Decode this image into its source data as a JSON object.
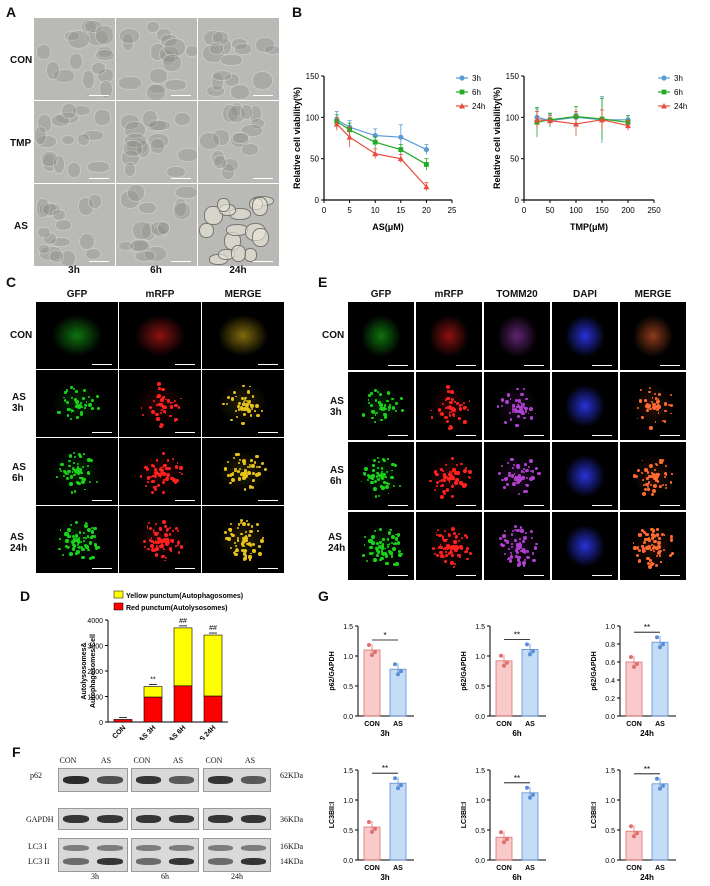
{
  "panels": {
    "A": "A",
    "B": "B",
    "C": "C",
    "D": "D",
    "E": "E",
    "F": "F",
    "G": "G"
  },
  "panel_a": {
    "rows": [
      "CON",
      "TMP",
      "AS"
    ],
    "cols": [
      "3h",
      "6h",
      "24h"
    ]
  },
  "panel_c": {
    "cols": [
      "GFP",
      "mRFP",
      "MERGE"
    ],
    "rows": [
      "CON",
      "AS\n3h",
      "AS\n6h",
      "AS\n24h"
    ]
  },
  "panel_e": {
    "cols": [
      "GFP",
      "mRFP",
      "TOMM20",
      "DAPI",
      "MERGE"
    ],
    "rows": [
      "CON",
      "AS\n3h",
      "AS\n6h",
      "AS\n24h"
    ]
  },
  "panel_f": {
    "lanes": [
      "CON",
      "AS",
      "CON",
      "AS",
      "CON",
      "AS"
    ],
    "left_labels": [
      "p62",
      "GAPDH",
      "LC3 I",
      "LC3 II"
    ],
    "right_labels": [
      "62KDa",
      "36KDa",
      "16KDa",
      "14KDa"
    ],
    "times": [
      "3h",
      "6h",
      "24h"
    ]
  },
  "colors": {
    "s3h": "#5b9bd5",
    "s6h": "#22aa22",
    "s24h": "#e84c3d",
    "yellow": "#ffff00",
    "red": "#ff0000",
    "pink": "#f4a7a7",
    "blue": "#9fc5f0"
  },
  "chart_data": [
    {
      "type": "line",
      "id": "B-left",
      "xlabel": "AS(μM)",
      "ylabel": "Relative cell viability(%)",
      "xlim": [
        0,
        25
      ],
      "ylim": [
        0,
        150
      ],
      "xticks": [
        0,
        5,
        10,
        15,
        20,
        25
      ],
      "yticks": [
        0,
        50,
        100,
        150
      ],
      "x": [
        2.5,
        5,
        10,
        15,
        20
      ],
      "series": [
        {
          "name": "3h",
          "values": [
            97,
            88,
            78,
            76,
            61
          ],
          "err": [
            10,
            8,
            8,
            15,
            6
          ]
        },
        {
          "name": "6h",
          "values": [
            95,
            85,
            70,
            61,
            43
          ],
          "err": [
            8,
            8,
            7,
            6,
            7
          ]
        },
        {
          "name": "24h",
          "values": [
            92,
            76,
            56,
            50,
            16
          ],
          "err": [
            8,
            12,
            6,
            5,
            5
          ]
        }
      ],
      "legend": "right"
    },
    {
      "type": "line",
      "id": "B-right",
      "xlabel": "TMP(μM)",
      "ylabel": "Relative cell viability(%)",
      "xlim": [
        0,
        250
      ],
      "ylim": [
        0,
        150
      ],
      "xticks": [
        0,
        50,
        100,
        150,
        200,
        250
      ],
      "yticks": [
        0,
        50,
        100,
        150
      ],
      "x": [
        25,
        50,
        100,
        150,
        200
      ],
      "series": [
        {
          "name": "3h",
          "values": [
            100,
            96,
            100,
            97,
            97
          ],
          "err": [
            10,
            8,
            5,
            28,
            5
          ]
        },
        {
          "name": "6h",
          "values": [
            94,
            97,
            101,
            98,
            94
          ],
          "err": [
            18,
            8,
            12,
            25,
            8
          ]
        },
        {
          "name": "24h",
          "values": [
            97,
            96,
            92,
            97,
            90
          ],
          "err": [
            10,
            6,
            15,
            12,
            6
          ]
        }
      ],
      "legend": "right"
    },
    {
      "type": "bar",
      "id": "D",
      "stacked": true,
      "ylabel": "Autolysosomes&\nAutophagosomes/Cell",
      "categories": [
        "CON",
        "AS 3H",
        "AS 6H",
        "AS 24H"
      ],
      "ylim": [
        0,
        4000
      ],
      "yticks": [
        0,
        1000,
        2000,
        3000,
        4000
      ],
      "series": [
        {
          "name": "Red punctum(Autolysosomes)",
          "values": [
            100,
            980,
            1420,
            1020
          ]
        },
        {
          "name": "Yellow punctum(Autophagosomes)",
          "values": [
            0,
            410,
            2270,
            2390
          ]
        }
      ],
      "annotations": [
        "",
        "**",
        "##",
        "##"
      ]
    },
    {
      "type": "bar",
      "id": "G-1",
      "ylabel": "p62/GAPDH",
      "categories": [
        "CON",
        "AS"
      ],
      "values": [
        1.1,
        0.78
      ],
      "ylim": [
        0,
        1.5
      ],
      "yticks": [
        "0.0",
        "0.5",
        "1.0",
        "1.5"
      ],
      "sig": "*",
      "time": "3h"
    },
    {
      "type": "bar",
      "id": "G-2",
      "ylabel": "p62/GAPDH",
      "categories": [
        "CON",
        "AS"
      ],
      "values": [
        0.92,
        1.11
      ],
      "ylim": [
        0,
        1.5
      ],
      "yticks": [
        "0.0",
        "0.5",
        "1.0",
        "1.5"
      ],
      "sig": "**",
      "time": "6h"
    },
    {
      "type": "bar",
      "id": "G-3",
      "ylabel": "p62/GAPDH",
      "categories": [
        "CON",
        "AS"
      ],
      "values": [
        0.6,
        0.82
      ],
      "ylim": [
        0,
        1.0
      ],
      "yticks": [
        "0.0",
        "0.2",
        "0.4",
        "0.6",
        "0.8",
        "1.0"
      ],
      "sig": "**",
      "time": "24h"
    },
    {
      "type": "bar",
      "id": "G-4",
      "ylabel": "LC3BII:I",
      "categories": [
        "CON",
        "AS"
      ],
      "values": [
        0.55,
        1.28
      ],
      "ylim": [
        0,
        1.5
      ],
      "yticks": [
        "0.0",
        "0.5",
        "1.0",
        "1.5"
      ],
      "sig": "**",
      "time": "3h"
    },
    {
      "type": "bar",
      "id": "G-5",
      "ylabel": "LC3BII:I",
      "categories": [
        "CON",
        "AS"
      ],
      "values": [
        0.38,
        1.12
      ],
      "ylim": [
        0,
        1.5
      ],
      "yticks": [
        "0.0",
        "0.5",
        "1.0",
        "1.5"
      ],
      "sig": "**",
      "time": "6h"
    },
    {
      "type": "bar",
      "id": "G-6",
      "ylabel": "LC3BII:I",
      "categories": [
        "CON",
        "AS"
      ],
      "values": [
        0.48,
        1.27
      ],
      "ylim": [
        0,
        1.5
      ],
      "yticks": [
        "0.0",
        "0.5",
        "1.0",
        "1.5"
      ],
      "sig": "**",
      "time": "24h"
    }
  ]
}
